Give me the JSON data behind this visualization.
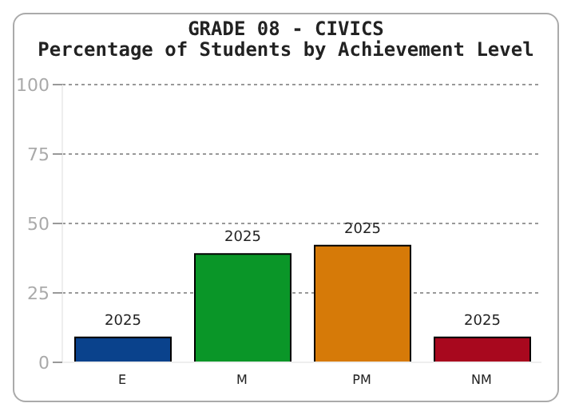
{
  "chart_data": {
    "type": "bar",
    "title": "GRADE 08 - CIVICS",
    "subtitle": "Percentage of Students by Achievement Level",
    "categories": [
      "E",
      "M",
      "PM",
      "NM"
    ],
    "series": [
      {
        "name": "2025",
        "values": [
          9,
          39,
          42,
          9
        ],
        "colors": [
          "#0a428c",
          "#0a9628",
          "#d67a08",
          "#a8081e"
        ]
      }
    ],
    "ylim": [
      0,
      100
    ],
    "yticks": [
      0,
      25,
      50,
      75,
      100
    ],
    "grid": "y"
  }
}
